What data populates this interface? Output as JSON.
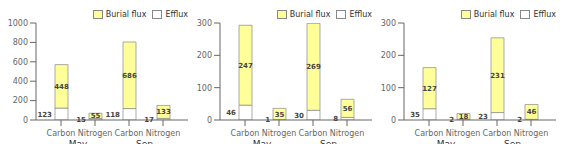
{
  "chart_data": [
    {
      "type": "bar",
      "stacked": true,
      "data_labels": true,
      "grid": false,
      "legend": "upper right",
      "categories": [
        "Carbon",
        "Nitrogen",
        "Carbon",
        "Nitrogen"
      ],
      "annotations": [
        "May",
        "Sep."
      ],
      "series": [
        {
          "name": "Efflux",
          "color": "#ffffff",
          "values": [
            123,
            15,
            118,
            17
          ]
        },
        {
          "name": "Burial flux",
          "color": "#ffff99",
          "values": [
            448,
            55,
            686,
            133
          ]
        }
      ],
      "ylim": [
        0,
        1000
      ],
      "yticks": [
        0,
        200,
        400,
        600,
        800,
        1000
      ]
    },
    {
      "type": "bar",
      "stacked": true,
      "data_labels": true,
      "grid": false,
      "legend": "upper right",
      "categories": [
        "Carbon",
        "Nitrogen",
        "Carbon",
        "Nitrogen"
      ],
      "annotations": [
        "May",
        "Sep."
      ],
      "series": [
        {
          "name": "Efflux",
          "color": "#ffffff",
          "values": [
            46,
            1,
            30,
            8
          ]
        },
        {
          "name": "Burial flux",
          "color": "#ffff99",
          "values": [
            247,
            35,
            269,
            56
          ]
        }
      ],
      "ylim": [
        0,
        300
      ],
      "yticks": [
        0,
        100,
        200,
        300
      ]
    },
    {
      "type": "bar",
      "stacked": true,
      "data_labels": true,
      "grid": false,
      "legend": "upper right",
      "categories": [
        "Carbon",
        "Nitrogen",
        "Carbon",
        "Nitrogen"
      ],
      "annotations": [
        "May",
        "Sep."
      ],
      "series": [
        {
          "name": "Efflux",
          "color": "#ffffff",
          "values": [
            35,
            2,
            23,
            2
          ]
        },
        {
          "name": "Burial flux",
          "color": "#ffff99",
          "values": [
            127,
            18,
            231,
            46
          ]
        }
      ],
      "ylim": [
        0,
        300
      ],
      "yticks": [
        0,
        100,
        200,
        300
      ]
    }
  ]
}
